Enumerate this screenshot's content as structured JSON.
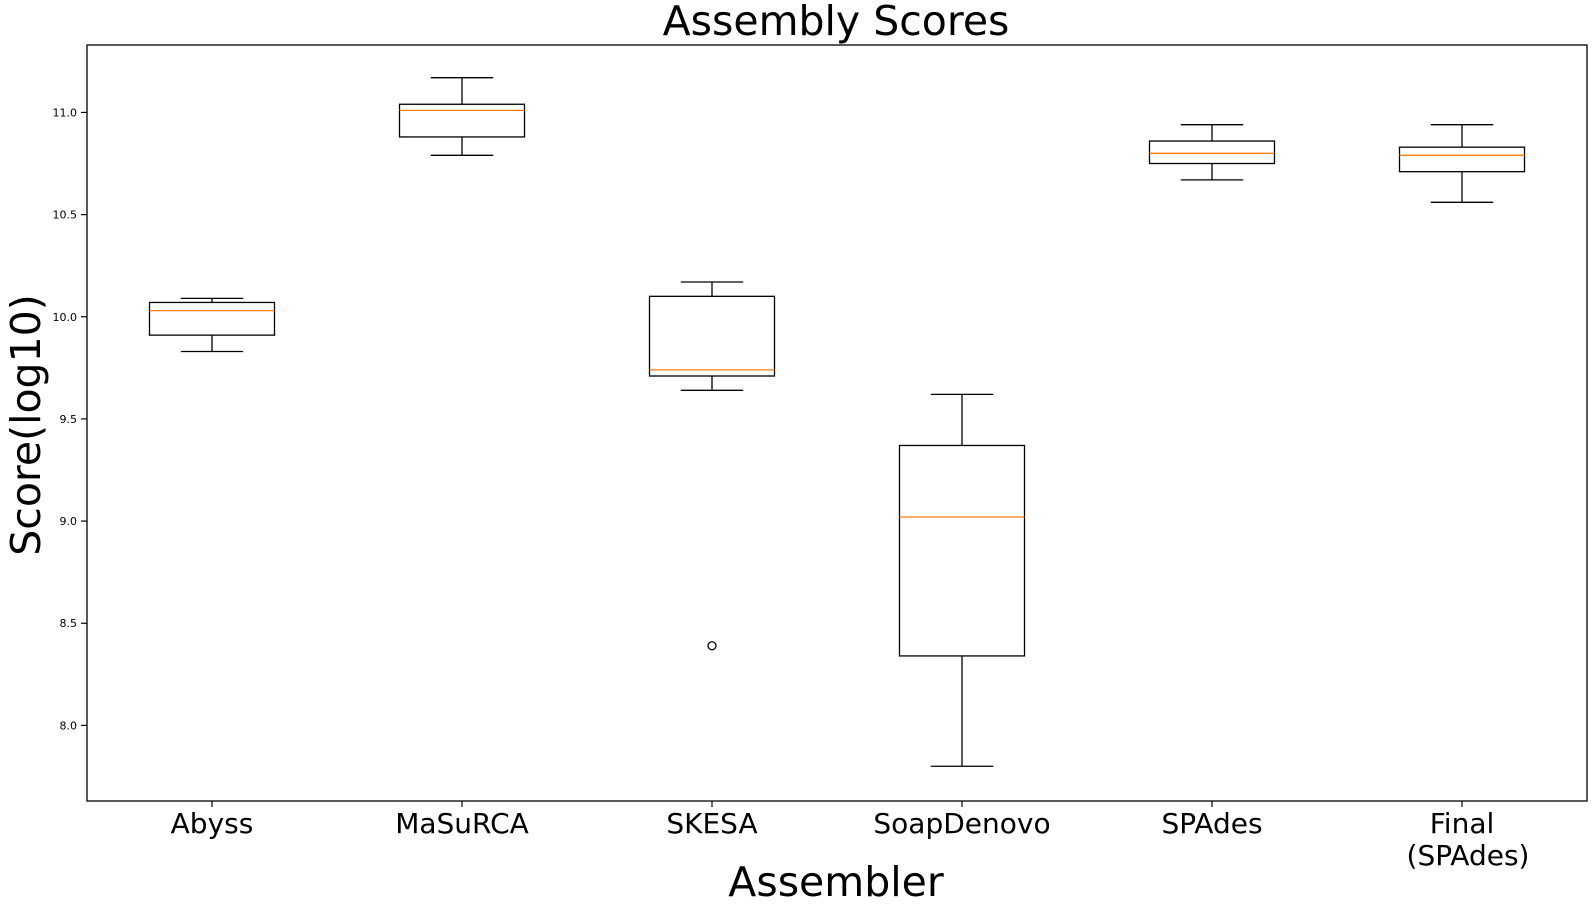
{
  "chart_data": {
    "type": "box",
    "title": "Assembly Scores",
    "xlabel": "Assembler",
    "ylabel": "Score(log10)",
    "ylim": [
      7.63,
      11.33
    ],
    "yticks": [
      8.0,
      8.5,
      9.0,
      9.5,
      10.0,
      10.5,
      11.0
    ],
    "ytick_labels": [
      "8.0",
      "8.5",
      "9.0",
      "9.5",
      "10.0",
      "10.5",
      "11.0"
    ],
    "grid": false,
    "legend": "none",
    "colors": {
      "box": "#000000",
      "median": "#ff7f0e",
      "axis": "#000000"
    },
    "categories": [
      {
        "lines": [
          "Abyss"
        ],
        "whisker_low": 9.83,
        "q1": 9.91,
        "median": 10.03,
        "q3": 10.07,
        "whisker_high": 10.09,
        "outliers": []
      },
      {
        "lines": [
          "MaSuRCA"
        ],
        "whisker_low": 10.79,
        "q1": 10.88,
        "median": 11.01,
        "q3": 11.04,
        "whisker_high": 11.17,
        "outliers": []
      },
      {
        "lines": [
          "SKESA"
        ],
        "whisker_low": 9.64,
        "q1": 9.71,
        "median": 9.74,
        "q3": 10.1,
        "whisker_high": 10.17,
        "outliers": [
          8.39
        ]
      },
      {
        "lines": [
          "SoapDenovo"
        ],
        "whisker_low": 7.8,
        "q1": 8.34,
        "median": 9.02,
        "q3": 9.37,
        "whisker_high": 9.62,
        "outliers": []
      },
      {
        "lines": [
          "SPAdes"
        ],
        "whisker_low": 10.67,
        "q1": 10.75,
        "median": 10.8,
        "q3": 10.86,
        "whisker_high": 10.94,
        "outliers": []
      },
      {
        "lines": [
          "Final",
          "(SPAdes)"
        ],
        "whisker_low": 10.56,
        "q1": 10.71,
        "median": 10.79,
        "q3": 10.83,
        "whisker_high": 10.94,
        "outliers": []
      }
    ]
  }
}
